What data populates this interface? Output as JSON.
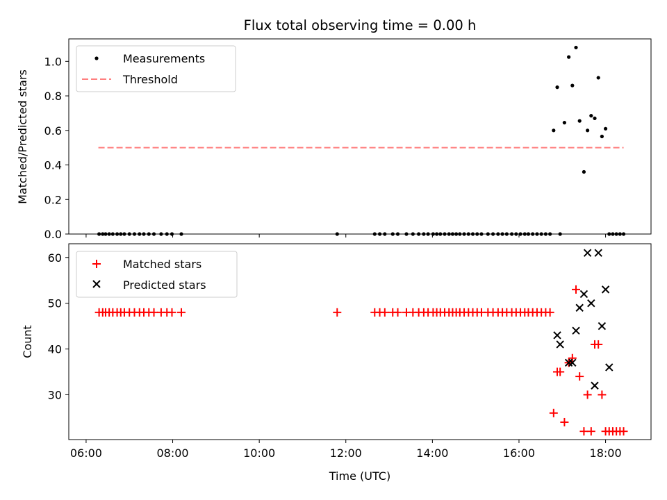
{
  "figure": {
    "title": "Flux total observing time = 0.00 h",
    "xlabel": "Time (UTC)"
  },
  "chart_data": [
    {
      "type": "scatter",
      "ylabel": "Matched/Predicted stars",
      "xlim_hours": [
        5.6,
        19.05
      ],
      "ylim": [
        0,
        1.13
      ],
      "yticks": [
        "0.0",
        "0.2",
        "0.4",
        "0.6",
        "0.8",
        "1.0"
      ],
      "legend": {
        "placement": "upper left",
        "entries": [
          "Measurements",
          "Threshold"
        ]
      },
      "threshold": {
        "name": "Threshold",
        "value": 0.5,
        "x_from": "06:17",
        "x_to": "18:25",
        "color": "#ff7f7f"
      },
      "series": [
        {
          "name": "Measurements",
          "color": "#000000",
          "x": [
            "06:18",
            "06:23",
            "06:27",
            "06:32",
            "06:37",
            "06:43",
            "06:48",
            "06:53",
            "07:00",
            "07:07",
            "07:14",
            "07:20",
            "07:27",
            "07:34",
            "07:44",
            "07:52",
            "07:59",
            "08:12",
            "11:48",
            "12:40",
            "12:47",
            "12:54",
            "13:05",
            "13:12",
            "13:24",
            "13:33",
            "13:41",
            "13:48",
            "13:54",
            "14:01",
            "14:06",
            "14:11",
            "14:17",
            "14:23",
            "14:28",
            "14:33",
            "14:38",
            "14:44",
            "14:50",
            "14:56",
            "15:02",
            "15:08",
            "15:17",
            "15:24",
            "15:31",
            "15:37",
            "15:43",
            "15:50",
            "15:56",
            "16:02",
            "16:08",
            "16:13",
            "16:19",
            "16:25",
            "16:31",
            "16:37",
            "16:43",
            "16:48",
            "16:53",
            "16:57",
            "17:03",
            "17:09",
            "17:14",
            "17:19",
            "17:24",
            "17:30",
            "17:35",
            "17:40",
            "17:45",
            "17:50",
            "17:55",
            "18:00",
            "18:05",
            "18:10",
            "18:15",
            "18:20",
            "18:25"
          ],
          "y": [
            0,
            0,
            0,
            0,
            0,
            0,
            0,
            0,
            0,
            0,
            0,
            0,
            0,
            0,
            0,
            0,
            0,
            0,
            0,
            0,
            0,
            0,
            0,
            0,
            0,
            0,
            0,
            0,
            0,
            0,
            0,
            0,
            0,
            0,
            0,
            0,
            0,
            0,
            0,
            0,
            0,
            0,
            0,
            0,
            0,
            0,
            0,
            0,
            0,
            0,
            0,
            0,
            0,
            0,
            0,
            0,
            0,
            0.6,
            0.85,
            0,
            0.645,
            1.025,
            0.86,
            1.08,
            0.655,
            0.36,
            0.6,
            0.685,
            0.67,
            0.905,
            0.565,
            0.61,
            0,
            0,
            0,
            0,
            0
          ]
        }
      ]
    },
    {
      "type": "scatter",
      "ylabel": "Count",
      "xlim_hours": [
        5.6,
        19.05
      ],
      "ylim": [
        20.2,
        63
      ],
      "yticks": [
        "30",
        "40",
        "50",
        "60"
      ],
      "xticks": [
        "06:00",
        "08:00",
        "10:00",
        "12:00",
        "14:00",
        "16:00",
        "18:00"
      ],
      "legend": {
        "placement": "upper left",
        "entries": [
          "Matched stars",
          "Predicted stars"
        ]
      },
      "series": [
        {
          "name": "Matched stars",
          "color": "#ff0000",
          "x": [
            "06:18",
            "06:23",
            "06:27",
            "06:32",
            "06:37",
            "06:43",
            "06:48",
            "06:53",
            "07:00",
            "07:07",
            "07:14",
            "07:20",
            "07:27",
            "07:34",
            "07:44",
            "07:52",
            "07:59",
            "08:12",
            "11:48",
            "12:40",
            "12:47",
            "12:54",
            "13:05",
            "13:12",
            "13:24",
            "13:33",
            "13:41",
            "13:48",
            "13:54",
            "14:01",
            "14:06",
            "14:11",
            "14:17",
            "14:23",
            "14:28",
            "14:33",
            "14:38",
            "14:44",
            "14:50",
            "14:56",
            "15:02",
            "15:08",
            "15:17",
            "15:24",
            "15:31",
            "15:37",
            "15:43",
            "15:50",
            "15:56",
            "16:02",
            "16:08",
            "16:13",
            "16:19",
            "16:25",
            "16:31",
            "16:37",
            "16:43",
            "16:48",
            "16:53",
            "16:57",
            "17:03",
            "17:09",
            "17:14",
            "17:19",
            "17:24",
            "17:30",
            "17:35",
            "17:40",
            "17:45",
            "17:50",
            "17:55",
            "18:00",
            "18:05",
            "18:10",
            "18:15",
            "18:20",
            "18:25"
          ],
          "y": [
            48,
            48,
            48,
            48,
            48,
            48,
            48,
            48,
            48,
            48,
            48,
            48,
            48,
            48,
            48,
            48,
            48,
            48,
            48,
            48,
            48,
            48,
            48,
            48,
            48,
            48,
            48,
            48,
            48,
            48,
            48,
            48,
            48,
            48,
            48,
            48,
            48,
            48,
            48,
            48,
            48,
            48,
            48,
            48,
            48,
            48,
            48,
            48,
            48,
            48,
            48,
            48,
            48,
            48,
            48,
            48,
            48,
            26,
            35,
            35,
            24,
            37,
            38,
            53,
            34,
            22,
            30,
            22,
            41,
            41,
            30,
            22,
            22,
            22,
            22,
            22,
            22
          ]
        },
        {
          "name": "Predicted stars",
          "color": "#000000",
          "x": [
            "16:53",
            "16:57",
            "17:09",
            "17:14",
            "17:19",
            "17:24",
            "17:30",
            "17:35",
            "17:40",
            "17:45",
            "17:50",
            "17:55",
            "18:00",
            "18:05"
          ],
          "y": [
            43,
            41,
            37,
            37,
            44,
            49,
            52,
            61,
            50,
            32,
            61,
            45,
            53,
            36
          ]
        }
      ]
    }
  ]
}
